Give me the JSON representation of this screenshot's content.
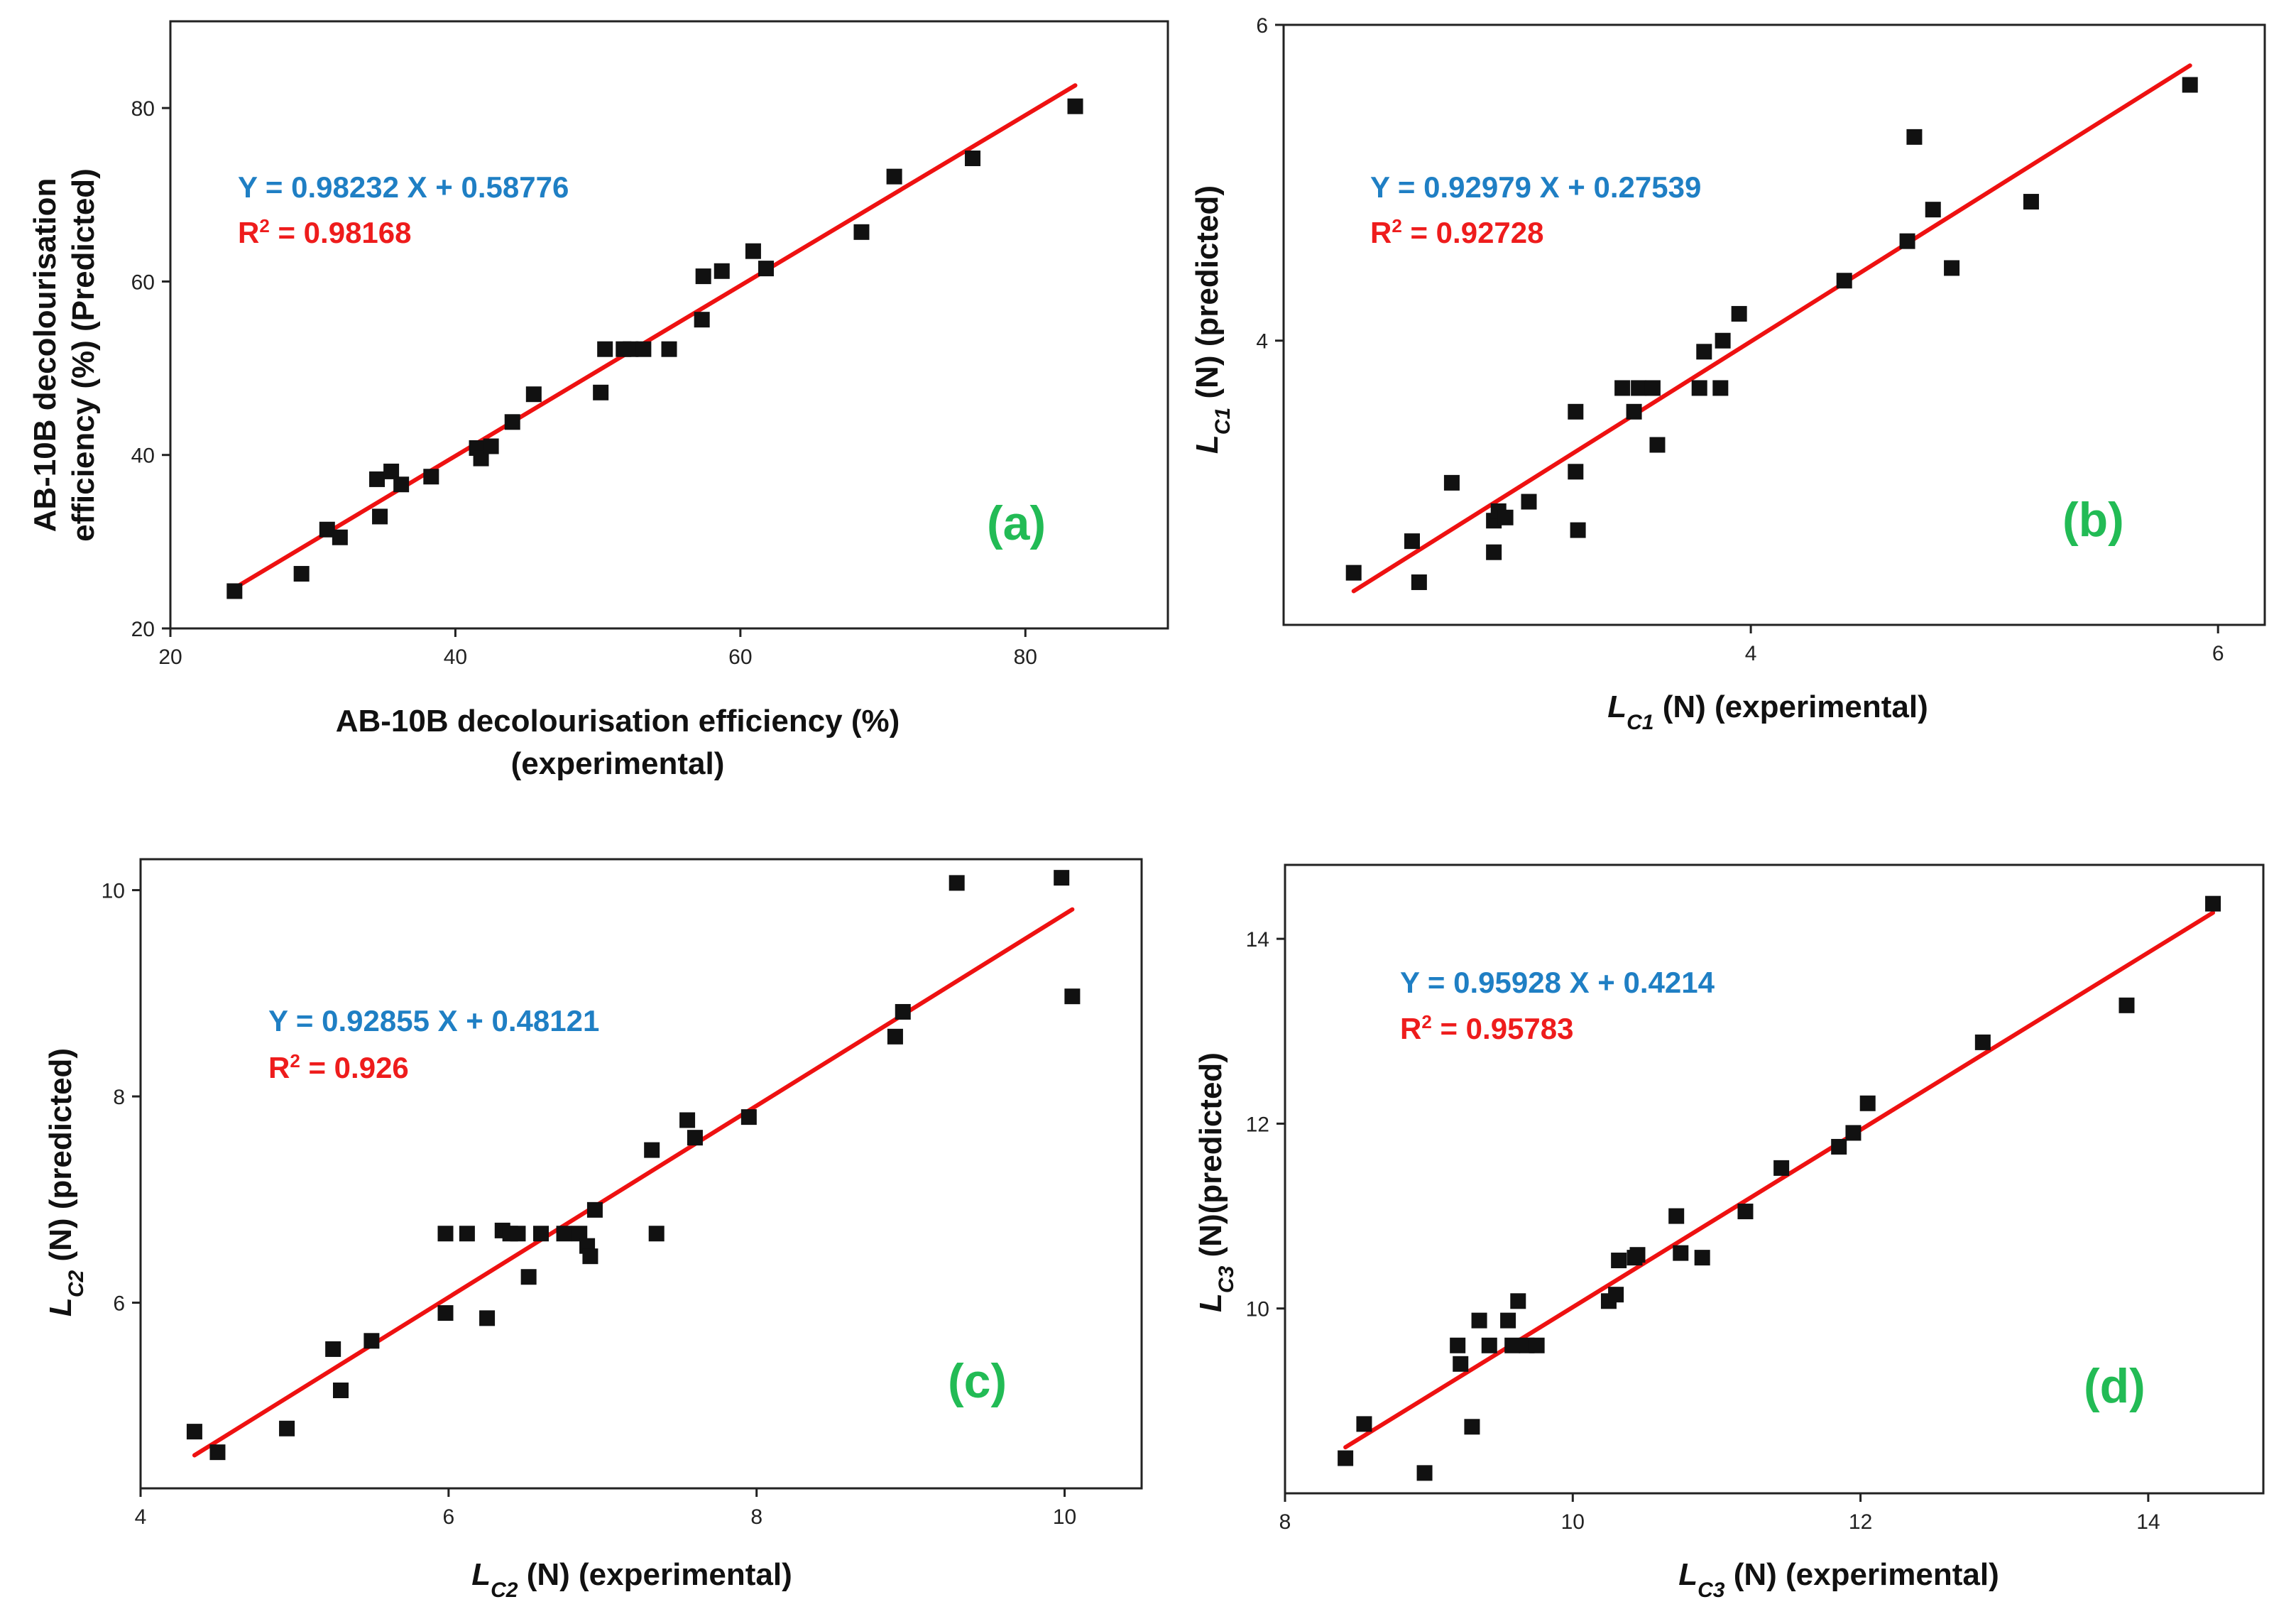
{
  "colors": {
    "equation": "#1f7fc4",
    "r2": "#ee1c1c",
    "fit": "#ee1111",
    "label": "#22bb55",
    "point": "#111111"
  },
  "chart_data": [
    {
      "type": "scatter",
      "panel_label": "(a)",
      "xlabel": [
        "AB-10B decolourisation efficiency (%)",
        "(experimental)"
      ],
      "ylabel": [
        "AB-10B decolourisation",
        "efficiency (%) (Predicted)"
      ],
      "xlim": [
        20,
        90
      ],
      "ylim": [
        20,
        90
      ],
      "xticks": [
        20,
        40,
        60,
        80
      ],
      "yticks": [
        20,
        40,
        60,
        80
      ],
      "equation": "Y = 0.98232 X + 0.58776",
      "r2_prefix": "R",
      "r2_sup": "2",
      "r2_value": " = 0.98168",
      "fit": {
        "slope": 0.98232,
        "intercept": 0.58776,
        "x_range": [
          24.5,
          83.5
        ]
      },
      "points": [
        [
          24.5,
          24.3
        ],
        [
          29.2,
          26.3
        ],
        [
          31,
          31.4
        ],
        [
          31.9,
          30.5
        ],
        [
          34.5,
          37.2
        ],
        [
          34.7,
          32.9
        ],
        [
          35.5,
          38.1
        ],
        [
          36.2,
          36.6
        ],
        [
          38.3,
          37.5
        ],
        [
          41.5,
          40.8
        ],
        [
          41.8,
          39.6
        ],
        [
          42.5,
          41
        ],
        [
          44,
          43.8
        ],
        [
          45.5,
          47
        ],
        [
          50.2,
          47.2
        ],
        [
          50.5,
          52.2
        ],
        [
          51.8,
          52.2
        ],
        [
          52.3,
          52.2
        ],
        [
          53.2,
          52.2
        ],
        [
          55,
          52.2
        ],
        [
          57.3,
          55.6
        ],
        [
          57.4,
          60.6
        ],
        [
          58.7,
          61.2
        ],
        [
          60.9,
          63.5
        ],
        [
          61.8,
          61.5
        ],
        [
          68.5,
          65.7
        ],
        [
          70.8,
          72.1
        ],
        [
          76.3,
          74.2
        ],
        [
          83.5,
          80.2
        ]
      ]
    },
    {
      "type": "scatter",
      "panel_label": "(b)",
      "xlabel_main": "L",
      "xlabel_sub": "C1",
      "xlabel_rest": " (N) (experimental)",
      "ylabel_main": "L",
      "ylabel_sub": "C1",
      "ylabel_rest": " (N) (predicted)",
      "xlim": [
        2.0,
        6.2
      ],
      "ylim": [
        2.2,
        6.0
      ],
      "xticks": [
        4,
        6
      ],
      "yticks": [
        4,
        6
      ],
      "equation": "Y = 0.92979 X + 0.27539",
      "r2_prefix": "R",
      "r2_sup": "2",
      "r2_value": " = 0.92728",
      "fit": {
        "slope": 0.92979,
        "intercept": 0.27539,
        "x_range": [
          2.3,
          5.88
        ]
      },
      "points": [
        [
          2.3,
          2.53
        ],
        [
          2.55,
          2.73
        ],
        [
          2.58,
          2.47
        ],
        [
          2.72,
          3.1
        ],
        [
          2.9,
          2.86
        ],
        [
          2.92,
          2.92
        ],
        [
          2.95,
          2.88
        ],
        [
          2.9,
          2.66
        ],
        [
          3.05,
          2.98
        ],
        [
          3.25,
          3.55
        ],
        [
          3.25,
          3.17
        ],
        [
          3.26,
          2.8
        ],
        [
          3.45,
          3.7
        ],
        [
          3.5,
          3.55
        ],
        [
          3.52,
          3.7
        ],
        [
          3.58,
          3.7
        ],
        [
          3.6,
          3.34
        ],
        [
          3.78,
          3.7
        ],
        [
          3.8,
          3.93
        ],
        [
          3.87,
          3.7
        ],
        [
          3.88,
          4.0
        ],
        [
          3.95,
          4.17
        ],
        [
          4.4,
          4.38
        ],
        [
          4.67,
          4.63
        ],
        [
          4.7,
          5.29
        ],
        [
          4.78,
          4.83
        ],
        [
          4.86,
          4.46
        ],
        [
          5.2,
          4.88
        ],
        [
          5.88,
          5.62
        ]
      ]
    },
    {
      "type": "scatter",
      "panel_label": "(c)",
      "xlabel_main": "L",
      "xlabel_sub": "C2",
      "xlabel_rest": " (N) (experimental)",
      "ylabel_main": "L",
      "ylabel_sub": "C2",
      "ylabel_rest": " (N) (predicted)",
      "xlim": [
        4.0,
        10.5
      ],
      "ylim": [
        4.2,
        10.3
      ],
      "xticks": [
        4,
        6,
        8,
        10
      ],
      "yticks": [
        6,
        8,
        10
      ],
      "equation": "Y = 0.92855 X + 0.48121",
      "r2_prefix": "R",
      "r2_sup": "2",
      "r2_value": " = 0.926",
      "fit": {
        "slope": 0.92855,
        "intercept": 0.48121,
        "x_range": [
          4.35,
          10.05
        ]
      },
      "points": [
        [
          4.35,
          4.75
        ],
        [
          4.5,
          4.55
        ],
        [
          4.95,
          4.78
        ],
        [
          5.25,
          5.55
        ],
        [
          5.3,
          5.15
        ],
        [
          5.5,
          5.63
        ],
        [
          5.98,
          6.67
        ],
        [
          5.98,
          5.9
        ],
        [
          6.12,
          6.67
        ],
        [
          6.25,
          5.85
        ],
        [
          6.35,
          6.7
        ],
        [
          6.4,
          6.67
        ],
        [
          6.45,
          6.67
        ],
        [
          6.52,
          6.25
        ],
        [
          6.6,
          6.67
        ],
        [
          6.75,
          6.67
        ],
        [
          6.85,
          6.67
        ],
        [
          6.9,
          6.55
        ],
        [
          6.92,
          6.45
        ],
        [
          6.95,
          6.9
        ],
        [
          7.32,
          7.48
        ],
        [
          7.35,
          6.67
        ],
        [
          7.55,
          7.77
        ],
        [
          7.6,
          7.6
        ],
        [
          7.95,
          7.8
        ],
        [
          8.9,
          8.58
        ],
        [
          8.95,
          8.82
        ],
        [
          9.3,
          10.07
        ],
        [
          9.98,
          10.12
        ],
        [
          10.05,
          8.97
        ]
      ]
    },
    {
      "type": "scatter",
      "panel_label": "(d)",
      "xlabel_main": "L",
      "xlabel_sub": "C3",
      "xlabel_rest": " (N) (experimental)",
      "ylabel_main": "L",
      "ylabel_sub": "C3",
      "ylabel_rest": " (N)(predicted)",
      "xlim": [
        8.0,
        14.8
      ],
      "ylim": [
        8.0,
        14.8
      ],
      "xticks": [
        8,
        10,
        12,
        14
      ],
      "yticks": [
        10,
        12,
        14
      ],
      "equation": "Y = 0.95928 X + 0.4214",
      "r2_prefix": "R",
      "r2_sup": "2",
      "r2_value": " = 0.95783",
      "fit": {
        "slope": 0.95928,
        "intercept": 0.4214,
        "x_range": [
          8.42,
          14.45
        ]
      },
      "points": [
        [
          8.42,
          8.38
        ],
        [
          8.55,
          8.75
        ],
        [
          8.97,
          8.22
        ],
        [
          9.2,
          9.6
        ],
        [
          9.22,
          9.4
        ],
        [
          9.3,
          8.72
        ],
        [
          9.35,
          9.87
        ],
        [
          9.42,
          9.6
        ],
        [
          9.55,
          9.87
        ],
        [
          9.58,
          9.6
        ],
        [
          9.62,
          10.08
        ],
        [
          9.68,
          9.6
        ],
        [
          9.75,
          9.6
        ],
        [
          10.25,
          10.08
        ],
        [
          10.3,
          10.15
        ],
        [
          10.32,
          10.52
        ],
        [
          10.43,
          10.55
        ],
        [
          10.45,
          10.58
        ],
        [
          10.72,
          11.0
        ],
        [
          10.75,
          10.6
        ],
        [
          10.9,
          10.55
        ],
        [
          11.2,
          11.05
        ],
        [
          11.45,
          11.52
        ],
        [
          11.85,
          11.75
        ],
        [
          11.95,
          11.9
        ],
        [
          12.05,
          12.22
        ],
        [
          12.85,
          12.88
        ],
        [
          13.85,
          13.28
        ],
        [
          14.45,
          14.38
        ]
      ]
    }
  ]
}
